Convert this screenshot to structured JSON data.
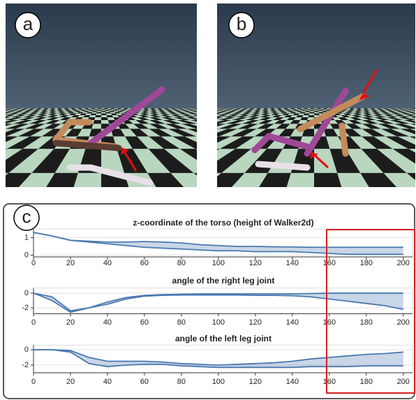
{
  "labels": [
    "a",
    "b",
    "c"
  ],
  "chart_data": [
    {
      "type": "band",
      "title": "z-coordinate of the torso (height of Walker2d)",
      "x": [
        0,
        10,
        20,
        30,
        40,
        50,
        60,
        70,
        80,
        90,
        100,
        110,
        120,
        130,
        140,
        150,
        160,
        170,
        180,
        190,
        200
      ],
      "series": [
        {
          "color": "#4a78b0",
          "values": [
            1.3,
            1.1,
            0.85,
            0.8,
            0.75,
            0.75,
            0.78,
            0.75,
            0.7,
            0.6,
            0.55,
            0.5,
            0.5,
            0.48,
            0.47,
            0.45,
            0.45,
            0.45,
            0.45,
            0.45,
            0.45
          ]
        },
        {
          "color": "#4a78b0",
          "values": [
            1.3,
            1.1,
            0.85,
            0.75,
            0.65,
            0.55,
            0.45,
            0.4,
            0.35,
            0.3,
            0.25,
            0.25,
            0.2,
            0.2,
            0.2,
            0.15,
            0.1,
            0.05,
            0.05,
            0.05,
            0.05
          ]
        }
      ],
      "xlim": [
        0,
        205
      ],
      "xticks": [
        0,
        20,
        40,
        60,
        80,
        100,
        120,
        140,
        160,
        180,
        200
      ],
      "ylim": [
        -0.1,
        1.5
      ],
      "yticks": [
        0,
        1
      ],
      "grid": true
    },
    {
      "type": "band",
      "title": "angle of the right leg joint",
      "x": [
        0,
        10,
        20,
        30,
        40,
        50,
        60,
        70,
        80,
        90,
        100,
        110,
        120,
        130,
        140,
        150,
        160,
        170,
        180,
        190,
        200
      ],
      "series": [
        {
          "color": "#4a78b0",
          "values": [
            0,
            -0.5,
            -2.4,
            -2,
            -1.2,
            -0.6,
            -0.3,
            -0.2,
            -0.15,
            -0.1,
            -0.1,
            -0.1,
            -0.1,
            -0.1,
            -0.1,
            -0.05,
            0,
            0,
            0,
            0,
            0
          ]
        },
        {
          "color": "#4a78b0",
          "values": [
            0,
            -1,
            -2.6,
            -2,
            -1.5,
            -0.8,
            -0.4,
            -0.3,
            -0.25,
            -0.25,
            -0.25,
            -0.25,
            -0.3,
            -0.3,
            -0.35,
            -0.5,
            -0.8,
            -1.1,
            -1.4,
            -1.7,
            -2.2
          ]
        }
      ],
      "xlim": [
        0,
        205
      ],
      "xticks": [
        0,
        20,
        40,
        60,
        80,
        100,
        120,
        140,
        160,
        180,
        200
      ],
      "ylim": [
        -2.8,
        0.7
      ],
      "yticks": [
        0,
        -2
      ],
      "grid": true
    },
    {
      "type": "band",
      "title": "angle of the left leg joint",
      "x": [
        0,
        10,
        20,
        30,
        40,
        50,
        60,
        70,
        80,
        90,
        100,
        110,
        120,
        130,
        140,
        150,
        160,
        170,
        180,
        190,
        200
      ],
      "series": [
        {
          "color": "#4a78b0",
          "values": [
            0,
            0,
            -0.1,
            -1,
            -1.5,
            -1.5,
            -1.5,
            -1.6,
            -1.8,
            -1.9,
            -2,
            -1.9,
            -1.8,
            -1.7,
            -1.5,
            -1.2,
            -1,
            -0.8,
            -0.6,
            -0.5,
            -0.3
          ]
        },
        {
          "color": "#4a78b0",
          "values": [
            0,
            0,
            -0.3,
            -1.8,
            -2.2,
            -2,
            -1.9,
            -1.9,
            -2.1,
            -2.2,
            -2.3,
            -2.3,
            -2.3,
            -2.3,
            -2.3,
            -2.2,
            -2.2,
            -2.2,
            -2.1,
            -2.1,
            -2.1
          ]
        }
      ],
      "xlim": [
        0,
        205
      ],
      "xticks": [
        0,
        20,
        40,
        60,
        80,
        100,
        120,
        140,
        160,
        180,
        200
      ],
      "ylim": [
        -3,
        0.6
      ],
      "yticks": [
        0,
        -2
      ],
      "grid": true
    }
  ]
}
